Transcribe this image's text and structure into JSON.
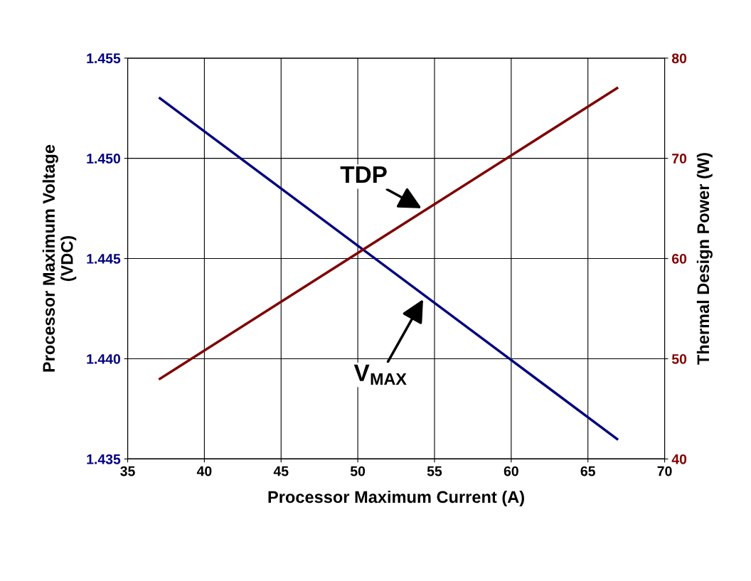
{
  "chart_data": {
    "type": "line",
    "xlabel": "Processor Maximum Current (A)",
    "ylabel": "Processor Maximum Voltage\n(VDC)",
    "y2label": "Thermal Design Power (W)",
    "x": [
      37.1,
      66.9
    ],
    "series": [
      {
        "name": "V$_{MAX}$",
        "color": "#000080",
        "values": [
          1.453,
          1.436
        ]
      },
      {
        "name": "TDP",
        "color": "#800000",
        "values": [
          48,
          77
        ],
        "axis": "y2"
      }
    ],
    "xlim": [
      35,
      70
    ],
    "xticks": [
      35,
      40,
      45,
      50,
      55,
      60,
      65,
      70
    ],
    "ylim": [
      1.435,
      1.455
    ],
    "yticks": [
      {
        "value": 1.435,
        "label": "1.435"
      },
      {
        "value": 1.44,
        "label": "1.440"
      },
      {
        "value": 1.445,
        "label": "1.445"
      },
      {
        "value": 1.45,
        "label": "1.450"
      },
      {
        "value": 1.455,
        "label": "1.455"
      }
    ],
    "y2lim": [
      40,
      80
    ],
    "y2ticks": [
      40,
      50,
      60,
      70,
      80
    ],
    "grid": true,
    "legend": false,
    "marker": "none",
    "line_style": "solid"
  }
}
